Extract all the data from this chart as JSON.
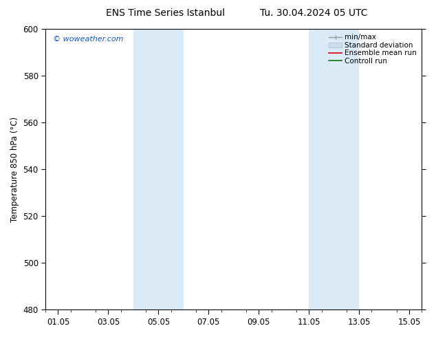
{
  "title_left": "ENS Time Series Istanbul",
  "title_right": "Tu. 30.04.2024 05 UTC",
  "ylabel": "Temperature 850 hPa (°C)",
  "ylim": [
    480,
    600
  ],
  "yticks": [
    480,
    500,
    520,
    540,
    560,
    580,
    600
  ],
  "xtick_labels": [
    "01.05",
    "03.05",
    "05.05",
    "07.05",
    "09.05",
    "11.05",
    "13.05",
    "15.05"
  ],
  "xtick_positions": [
    0,
    2,
    4,
    6,
    8,
    10,
    12,
    14
  ],
  "xlim": [
    -0.5,
    14.5
  ],
  "shaded_bands": [
    {
      "x_start": 3,
      "x_end": 5,
      "color": "#daeaf7"
    },
    {
      "x_start": 10,
      "x_end": 12,
      "color": "#daeaf7"
    }
  ],
  "watermark_text": "© woweather.com",
  "watermark_color": "#1155cc",
  "bg_color": "#ffffff",
  "plot_bg_color": "#ffffff",
  "border_color": "#000000",
  "font_size": 8.5,
  "title_font_size": 10
}
